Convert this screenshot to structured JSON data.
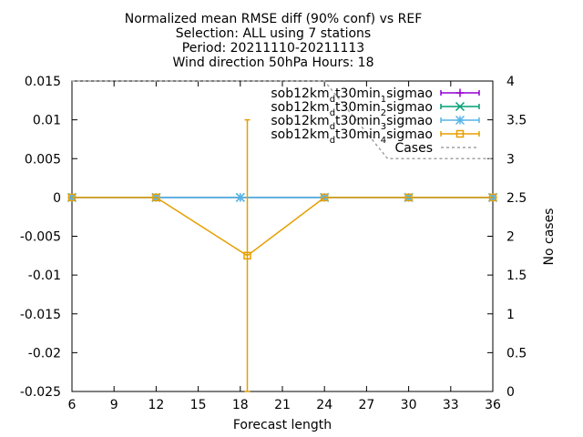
{
  "chart_data": {
    "type": "line",
    "title": [
      "Normalized mean RMSE diff (90% conf) vs REF",
      "Selection: ALL using     7 stations",
      "Period: 20211110-20211113",
      "Wind direction 50hPa   Hours: 18"
    ],
    "xlabel": "Forecast length",
    "ylabel": "",
    "y2label": "No cases",
    "x_ticks": [
      6,
      9,
      12,
      15,
      18,
      21,
      24,
      27,
      30,
      33,
      36
    ],
    "y_ticks": [
      0.015,
      0.01,
      0.005,
      0,
      -0.005,
      -0.01,
      -0.015,
      -0.02,
      -0.025
    ],
    "y_tick_labels": [
      "0.015",
      "0.01",
      "0.005",
      "0",
      "-0.005",
      "-0.01",
      "-0.015",
      "-0.02",
      "-0.025"
    ],
    "y2_ticks": [
      4,
      3.5,
      3,
      2.5,
      2,
      1.5,
      1,
      0.5,
      0
    ],
    "y2_tick_labels": [
      "4",
      "3.5",
      "3",
      "2.5",
      "2",
      "1.5",
      "1",
      "0.5",
      "0"
    ],
    "xlim": [
      6,
      36
    ],
    "ylim": [
      -0.025,
      0.015
    ],
    "y2lim": [
      0,
      4
    ],
    "legend_position": "top-right",
    "series": [
      {
        "name_parts": [
          "sob12km",
          "d",
          "t30min",
          "1",
          "sigmao"
        ],
        "color": "#9400d3",
        "marker": "plus",
        "points": [
          {
            "x": 6,
            "y": 0
          },
          {
            "x": 12,
            "y": 0
          },
          {
            "x": 18,
            "y": 0
          },
          {
            "x": 24,
            "y": 0
          },
          {
            "x": 30,
            "y": 0
          },
          {
            "x": 36,
            "y": 0
          }
        ]
      },
      {
        "name_parts": [
          "sob12km",
          "d",
          "t30min",
          "2",
          "sigmao"
        ],
        "color": "#009e73",
        "marker": "cross",
        "points": [
          {
            "x": 6,
            "y": 0
          },
          {
            "x": 12,
            "y": 0
          },
          {
            "x": 18,
            "y": 0
          },
          {
            "x": 24,
            "y": 0
          },
          {
            "x": 30,
            "y": 0
          },
          {
            "x": 36,
            "y": 0
          }
        ]
      },
      {
        "name_parts": [
          "sob12km",
          "d",
          "t30min",
          "3",
          "sigmao"
        ],
        "color": "#56b4e9",
        "marker": "star",
        "points": [
          {
            "x": 6,
            "y": 0
          },
          {
            "x": 12,
            "y": 0
          },
          {
            "x": 18,
            "y": 0
          },
          {
            "x": 24,
            "y": 0
          },
          {
            "x": 30,
            "y": 0
          },
          {
            "x": 36,
            "y": 0
          }
        ]
      },
      {
        "name_parts": [
          "sob12km",
          "d",
          "t30min",
          "4",
          "sigmao"
        ],
        "color": "#e69f00",
        "marker": "square",
        "points": [
          {
            "x": 6,
            "y": 0
          },
          {
            "x": 12,
            "y": 0
          },
          {
            "x": 18.5,
            "y": -0.0075,
            "err_low": -0.025,
            "err_high": 0.01
          },
          {
            "x": 24,
            "y": 0
          },
          {
            "x": 30,
            "y": 0
          },
          {
            "x": 36,
            "y": 0
          }
        ]
      }
    ],
    "cases": {
      "name": "Cases",
      "color": "#a0a0a0",
      "axis": "y2",
      "points": [
        {
          "x": 6,
          "y": 4
        },
        {
          "x": 18,
          "y": 4
        },
        {
          "x": 24,
          "y": 4
        },
        {
          "x": 28.5,
          "y": 3
        },
        {
          "x": 36,
          "y": 3
        }
      ]
    }
  }
}
